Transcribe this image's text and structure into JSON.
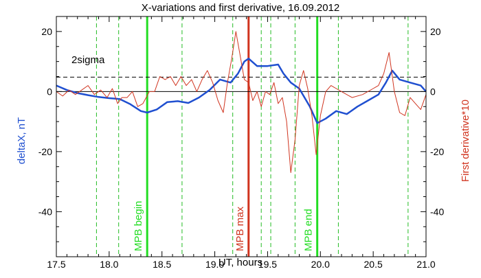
{
  "chart_data": {
    "type": "line",
    "title": "X-variations and first derivative, 16.09.2012",
    "xlabel": "UT, hours",
    "ylabel_left": "deltaX, nT",
    "ylabel_right": "First derivative*10",
    "xlim": [
      17.5,
      21.0
    ],
    "ylim": [
      -55,
      25
    ],
    "x_ticks": [
      "17.5",
      "18.0",
      "18.5",
      "19.0",
      "19.5",
      "20.0",
      "20.5",
      "21.0"
    ],
    "y_ticks": [
      "20",
      "0",
      "-20",
      "-40"
    ],
    "grid": false,
    "colors": {
      "deltaX": "#1f4fd0",
      "derivative": "#d0341f",
      "mpb_boundary": "#22dd22",
      "mpb_max": "#d0341f",
      "minor_event": "#22bb22",
      "sigma_line": "#000000",
      "zero_line": "#000000"
    },
    "reference_lines": {
      "zero": 0,
      "sigma": 4.8,
      "sigma_label": "2sigma"
    },
    "vertical_markers": [
      {
        "x": 18.36,
        "style": "solid",
        "color": "#22dd22",
        "label": "MPB begin"
      },
      {
        "x": 19.32,
        "style": "solid",
        "color": "#d0341f",
        "label": "MPB max"
      },
      {
        "x": 19.97,
        "style": "solid",
        "color": "#22dd22",
        "label": "MPB end"
      }
    ],
    "dashed_events": [
      17.88,
      18.09,
      18.69,
      19.17,
      19.44,
      19.53,
      19.76,
      20.17,
      20.83
    ],
    "series": [
      {
        "name": "deltaX",
        "x": [
          17.5,
          17.6,
          17.7,
          17.8,
          17.9,
          18.0,
          18.1,
          18.2,
          18.3,
          18.36,
          18.45,
          18.55,
          18.65,
          18.75,
          18.85,
          18.95,
          19.05,
          19.15,
          19.22,
          19.28,
          19.32,
          19.4,
          19.5,
          19.6,
          19.65,
          19.72,
          19.8,
          19.9,
          19.97,
          20.05,
          20.15,
          20.25,
          20.35,
          20.45,
          20.55,
          20.62,
          20.68,
          20.75,
          20.85,
          20.95,
          21.0
        ],
        "values": [
          2,
          0.5,
          -0.5,
          -1.2,
          -1.8,
          -2.2,
          -2.5,
          -4.2,
          -6.5,
          -7,
          -6,
          -3.5,
          -3.2,
          -3.8,
          -2,
          0.5,
          4,
          3,
          6,
          10,
          11,
          8.5,
          8.5,
          9,
          6,
          3,
          1,
          -5,
          -10.5,
          -9,
          -6.5,
          -7.5,
          -5,
          -3,
          -1,
          3,
          7,
          4,
          3,
          2,
          0
        ]
      },
      {
        "name": "derivative",
        "x": [
          17.5,
          17.56,
          17.62,
          17.68,
          17.74,
          17.8,
          17.86,
          17.92,
          17.98,
          18.03,
          18.08,
          18.12,
          18.17,
          18.22,
          18.27,
          18.32,
          18.38,
          18.43,
          18.48,
          18.53,
          18.58,
          18.63,
          18.68,
          18.73,
          18.78,
          18.83,
          18.88,
          18.93,
          18.98,
          19.03,
          19.08,
          19.12,
          19.16,
          19.2,
          19.24,
          19.28,
          19.32,
          19.36,
          19.4,
          19.44,
          19.48,
          19.52,
          19.56,
          19.6,
          19.64,
          19.68,
          19.72,
          19.76,
          19.8,
          19.84,
          19.88,
          19.92,
          19.96,
          20.0,
          20.05,
          20.1,
          20.15,
          20.2,
          20.3,
          20.4,
          20.5,
          20.55,
          20.6,
          20.65,
          20.7,
          20.75,
          20.8,
          20.85,
          20.9,
          20.95,
          21.0
        ],
        "values": [
          0,
          -1.5,
          0.5,
          -1,
          0.5,
          2,
          -1,
          0.5,
          -2,
          1,
          -4,
          -2,
          -2,
          0,
          -5,
          -4,
          0,
          0,
          5,
          4,
          5,
          2,
          5,
          2,
          4,
          0,
          4,
          7,
          3,
          -3,
          -7,
          3,
          11,
          20,
          12,
          4,
          3,
          -3,
          0,
          -5,
          0,
          -1,
          3,
          -4,
          -2,
          -10,
          -27,
          -16,
          2,
          7,
          1,
          -8,
          -21,
          -8,
          0,
          2,
          1,
          0,
          -2,
          -1,
          1,
          2,
          6,
          13,
          0,
          -7,
          -8,
          -2,
          -4,
          -6,
          -1
        ]
      }
    ]
  }
}
